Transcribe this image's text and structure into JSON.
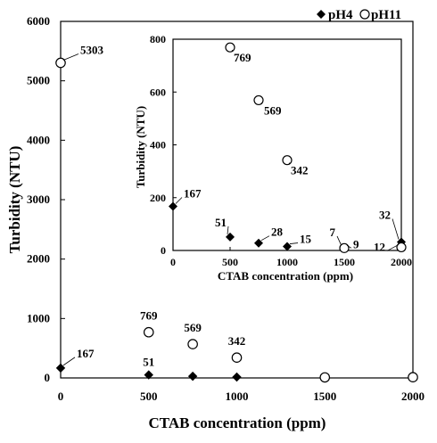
{
  "legend": {
    "ph4": "pH4",
    "ph11": "pH11"
  },
  "main": {
    "xlabel": "CTAB concentration (ppm)",
    "ylabel": "Turbidity (NTU)"
  },
  "inset": {
    "xlabel": "CTAB concentration (ppm)",
    "ylabel": "Turbidity (NTU)"
  },
  "chart_data": [
    {
      "type": "scatter",
      "panel": "main",
      "xlim": [
        0,
        2000
      ],
      "ylim": [
        0,
        6000
      ],
      "xticks": [
        "0",
        "500",
        "1000",
        "1500",
        "2000"
      ],
      "yticks": [
        "0",
        "1000",
        "2000",
        "3000",
        "4000",
        "5000",
        "6000"
      ],
      "xlabel": "CTAB concentration (ppm)",
      "ylabel": "Turbidity (NTU)",
      "series": [
        {
          "name": "pH4",
          "marker": "filled-diamond",
          "x": [
            0,
            500,
            750,
            1000,
            1500,
            2000
          ],
          "y": [
            167,
            51,
            28,
            15,
            7,
            32
          ],
          "labels": [
            "167",
            "51",
            "",
            "",
            "",
            ""
          ]
        },
        {
          "name": "pH11",
          "marker": "open-circle",
          "x": [
            0,
            500,
            750,
            1000,
            1500,
            2000
          ],
          "y": [
            5303,
            769,
            569,
            342,
            9,
            12
          ],
          "labels": [
            "5303",
            "769",
            "569",
            "342",
            "",
            ""
          ]
        }
      ]
    },
    {
      "type": "scatter",
      "panel": "inset",
      "xlim": [
        0,
        2000
      ],
      "ylim": [
        0,
        800
      ],
      "xticks": [
        "0",
        "500",
        "1000",
        "1500",
        "2000"
      ],
      "yticks": [
        "0",
        "200",
        "400",
        "600",
        "800"
      ],
      "xlabel": "CTAB concentration (ppm)",
      "ylabel": "Turbidity (NTU)",
      "series": [
        {
          "name": "pH4",
          "marker": "filled-diamond",
          "x": [
            0,
            500,
            750,
            1000,
            1500,
            2000
          ],
          "y": [
            167,
            51,
            28,
            15,
            7,
            32
          ],
          "labels": [
            "167",
            "51",
            "28",
            "15",
            "7",
            "32"
          ]
        },
        {
          "name": "pH11",
          "marker": "open-circle",
          "x": [
            500,
            750,
            1000,
            1500,
            2000
          ],
          "y": [
            769,
            569,
            342,
            9,
            12
          ],
          "labels": [
            "769",
            "569",
            "342",
            "9",
            "12"
          ]
        }
      ]
    }
  ]
}
